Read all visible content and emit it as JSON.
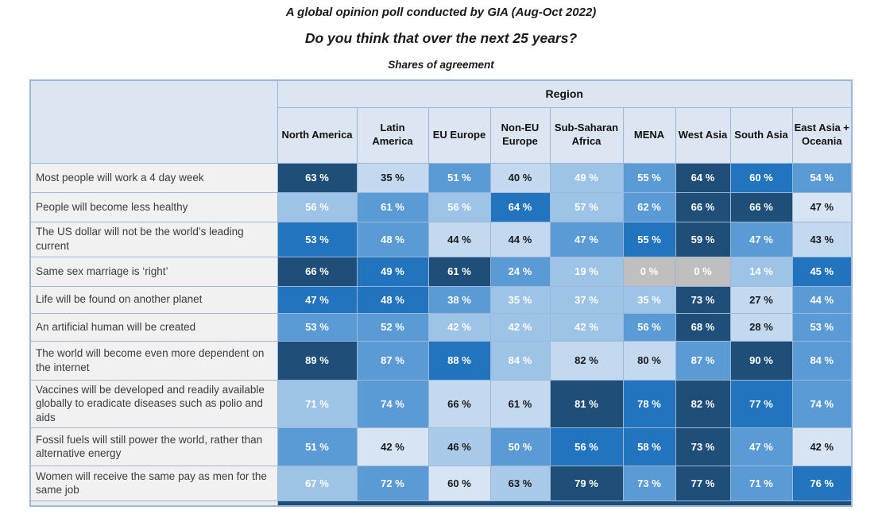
{
  "titles": {
    "line1": "A global opinion poll conducted by GIA (Aug-Oct 2022)",
    "line2": "Do you think that over the next 25 years?",
    "line3": "Shares of agreement"
  },
  "palette": {
    "navy": "#1F4E79",
    "strong": "#2374BE",
    "medium": "#5B9BD5",
    "light": "#9DC3E6",
    "lightDark": "#A9CBE9",
    "pale": "#C2D9EF",
    "palest": "#D7E4F3",
    "gray": "#BFBFBF"
  },
  "chart_data": {
    "type": "heatmap",
    "title": "A global opinion poll conducted by GIA (Aug-Oct 2022)",
    "subtitle": "Do you think that over the next 25 years?",
    "note": "Shares of agreement",
    "unit": "%",
    "column_group_label": "Region",
    "columns": [
      "North America",
      "Latin America",
      "EU Europe",
      "Non-EU Europe",
      "Sub-Saharan Africa",
      "MENA",
      "West Asia",
      "South Asia",
      "East Asia + Oceania"
    ],
    "rows": [
      {
        "label": "Most people will work a 4 day week",
        "values": [
          63,
          35,
          51,
          40,
          49,
          55,
          64,
          60,
          54
        ],
        "shades": [
          "navy",
          "pale",
          "medium",
          "pale",
          "light",
          "medium",
          "navy",
          "strong",
          "medium"
        ]
      },
      {
        "label": "People will become less healthy",
        "values": [
          56,
          61,
          56,
          64,
          57,
          62,
          66,
          66,
          47
        ],
        "shades": [
          "light",
          "medium",
          "light",
          "strong",
          "light",
          "medium",
          "navy",
          "navy",
          "palest"
        ]
      },
      {
        "label": "The US dollar will not be the world’s leading current",
        "values": [
          53,
          48,
          44,
          44,
          47,
          55,
          59,
          47,
          43
        ],
        "shades": [
          "strong",
          "medium",
          "pale",
          "pale",
          "medium",
          "strong",
          "navy",
          "medium",
          "pale"
        ]
      },
      {
        "label": "Same sex marriage is ‘right’",
        "values": [
          66,
          49,
          61,
          24,
          19,
          0,
          0,
          14,
          45
        ],
        "shades": [
          "navy",
          "strong",
          "navy",
          "medium",
          "light",
          "gray",
          "gray",
          "light",
          "strong"
        ]
      },
      {
        "label": "Life will be found on another planet",
        "values": [
          47,
          48,
          38,
          35,
          37,
          35,
          73,
          27,
          44
        ],
        "shades": [
          "strong",
          "strong",
          "medium",
          "light",
          "light",
          "light",
          "navy",
          "pale",
          "medium"
        ]
      },
      {
        "label": "An artificial human will be created",
        "values": [
          53,
          52,
          42,
          42,
          42,
          56,
          68,
          28,
          53
        ],
        "shades": [
          "medium",
          "medium",
          "light",
          "light",
          "light",
          "medium",
          "navy",
          "pale",
          "medium"
        ]
      },
      {
        "label": "The world will become even more dependent on the internet",
        "values": [
          89,
          87,
          88,
          84,
          82,
          80,
          87,
          90,
          84
        ],
        "shades": [
          "navy",
          "medium",
          "strong",
          "light",
          "pale",
          "pale",
          "medium",
          "navy",
          "medium"
        ]
      },
      {
        "label": "Vaccines will be developed and readily available globally to eradicate diseases such as polio and aids",
        "values": [
          71,
          74,
          66,
          61,
          81,
          78,
          82,
          77,
          74
        ],
        "shades": [
          "light",
          "medium",
          "pale",
          "pale",
          "navy",
          "strong",
          "navy",
          "strong",
          "medium"
        ]
      },
      {
        "label": "Fossil fuels will still power the world, rather than alternative energy",
        "values": [
          51,
          42,
          46,
          50,
          56,
          58,
          73,
          47,
          42
        ],
        "shades": [
          "medium",
          "palest",
          "lightDark",
          "medium",
          "strong",
          "strong",
          "navy",
          "medium",
          "palest"
        ]
      },
      {
        "label": "Women will receive the same pay as men for the same job",
        "values": [
          67,
          72,
          60,
          63,
          79,
          73,
          77,
          71,
          76
        ],
        "shades": [
          "light",
          "medium",
          "palest",
          "lightDark",
          "navy",
          "medium",
          "navy",
          "medium",
          "strong"
        ]
      }
    ]
  }
}
